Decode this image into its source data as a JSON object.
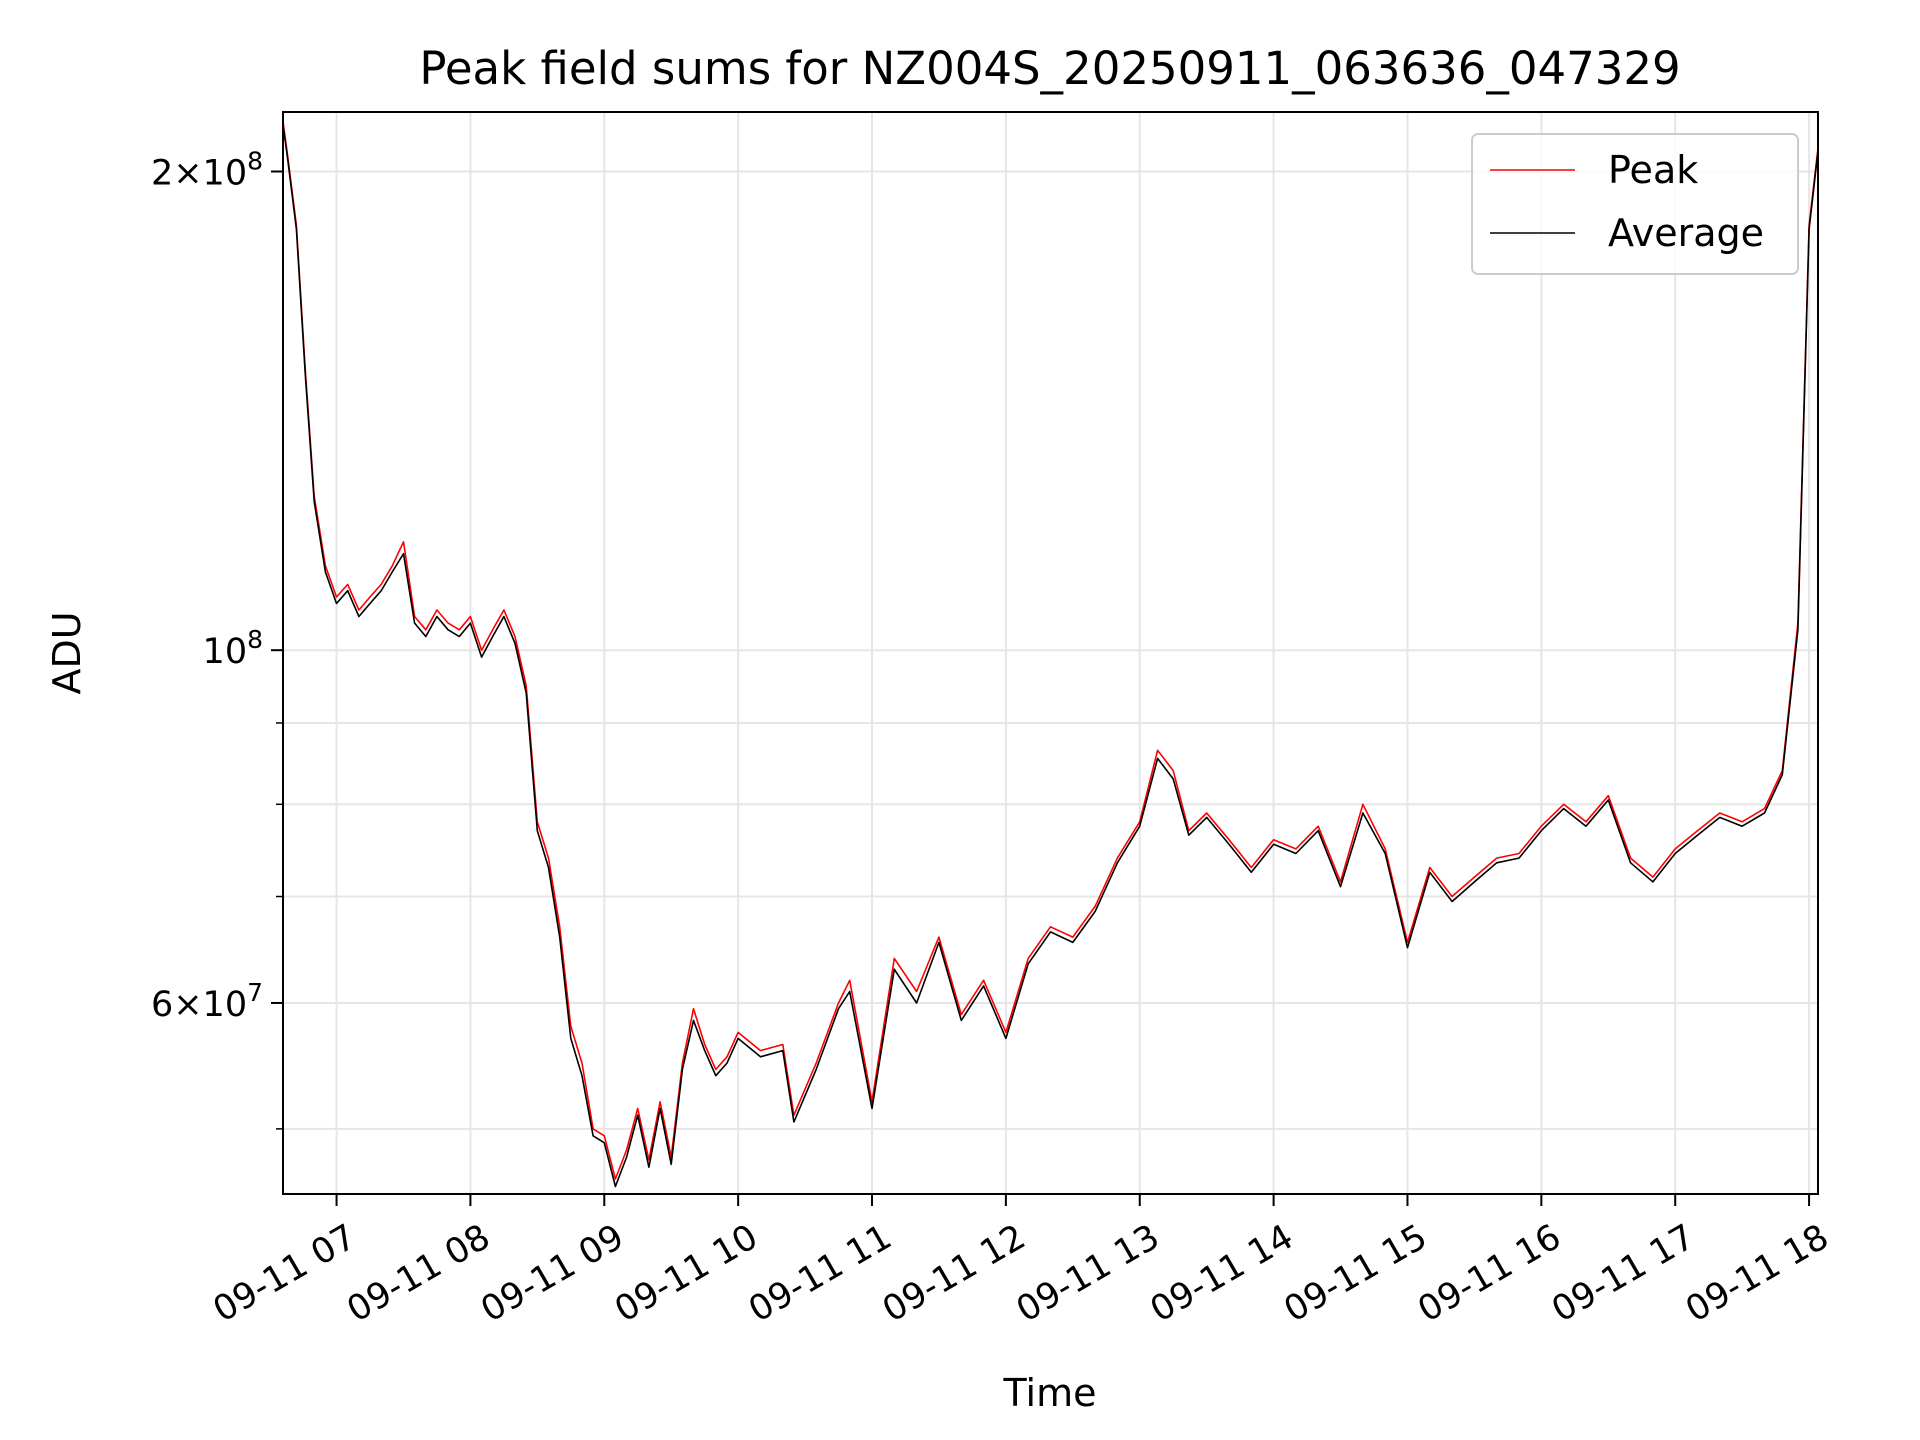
{
  "chart_data": {
    "type": "line",
    "title": "Peak field sums for NZ004S_20250911_063636_047329",
    "xlabel": "Time",
    "ylabel": "ADU",
    "y_scale": "log",
    "xlim": [
      "2025-09-11 06:36",
      "2025-09-11 18:04"
    ],
    "ylim": [
      45500000,
      218000000
    ],
    "grid": true,
    "legend_position": "top-right",
    "x_ticks": [
      {
        "t": "2025-09-11 07:00",
        "label": "09-11 07"
      },
      {
        "t": "2025-09-11 08:00",
        "label": "09-11 08"
      },
      {
        "t": "2025-09-11 09:00",
        "label": "09-11 09"
      },
      {
        "t": "2025-09-11 10:00",
        "label": "09-11 10"
      },
      {
        "t": "2025-09-11 11:00",
        "label": "09-11 11"
      },
      {
        "t": "2025-09-11 12:00",
        "label": "09-11 12"
      },
      {
        "t": "2025-09-11 13:00",
        "label": "09-11 13"
      },
      {
        "t": "2025-09-11 14:00",
        "label": "09-11 14"
      },
      {
        "t": "2025-09-11 15:00",
        "label": "09-11 15"
      },
      {
        "t": "2025-09-11 16:00",
        "label": "09-11 16"
      },
      {
        "t": "2025-09-11 17:00",
        "label": "09-11 17"
      },
      {
        "t": "2025-09-11 18:00",
        "label": "09-11 18"
      }
    ],
    "y_major_ticks": [
      {
        "value": 60000000,
        "mantissa": "6",
        "exponent": "7"
      },
      {
        "value": 100000000,
        "mantissa": "",
        "exponent": "8"
      },
      {
        "value": 200000000,
        "mantissa": "2",
        "exponent": "8"
      }
    ],
    "y_minor_ticks": [
      50000000,
      70000000,
      80000000,
      90000000
    ],
    "series": [
      {
        "name": "Peak",
        "color": "#ff0000",
        "x": [
          "2025-09-11 06:36",
          "2025-09-11 06:38",
          "2025-09-11 06:42",
          "2025-09-11 06:46",
          "2025-09-11 06:50",
          "2025-09-11 06:55",
          "2025-09-11 07:00",
          "2025-09-11 07:05",
          "2025-09-11 07:10",
          "2025-09-11 07:15",
          "2025-09-11 07:20",
          "2025-09-11 07:25",
          "2025-09-11 07:30",
          "2025-09-11 07:35",
          "2025-09-11 07:40",
          "2025-09-11 07:45",
          "2025-09-11 07:50",
          "2025-09-11 07:55",
          "2025-09-11 08:00",
          "2025-09-11 08:05",
          "2025-09-11 08:10",
          "2025-09-11 08:15",
          "2025-09-11 08:20",
          "2025-09-11 08:25",
          "2025-09-11 08:30",
          "2025-09-11 08:35",
          "2025-09-11 08:40",
          "2025-09-11 08:45",
          "2025-09-11 08:50",
          "2025-09-11 08:55",
          "2025-09-11 09:00",
          "2025-09-11 09:05",
          "2025-09-11 09:10",
          "2025-09-11 09:15",
          "2025-09-11 09:20",
          "2025-09-11 09:25",
          "2025-09-11 09:30",
          "2025-09-11 09:35",
          "2025-09-11 09:40",
          "2025-09-11 09:45",
          "2025-09-11 09:50",
          "2025-09-11 09:55",
          "2025-09-11 10:00",
          "2025-09-11 10:10",
          "2025-09-11 10:20",
          "2025-09-11 10:25",
          "2025-09-11 10:35",
          "2025-09-11 10:45",
          "2025-09-11 10:50",
          "2025-09-11 11:00",
          "2025-09-11 11:10",
          "2025-09-11 11:20",
          "2025-09-11 11:30",
          "2025-09-11 11:40",
          "2025-09-11 11:50",
          "2025-09-11 12:00",
          "2025-09-11 12:10",
          "2025-09-11 12:20",
          "2025-09-11 12:30",
          "2025-09-11 12:40",
          "2025-09-11 12:50",
          "2025-09-11 13:00",
          "2025-09-11 13:08",
          "2025-09-11 13:15",
          "2025-09-11 13:22",
          "2025-09-11 13:30",
          "2025-09-11 13:40",
          "2025-09-11 13:50",
          "2025-09-11 14:00",
          "2025-09-11 14:10",
          "2025-09-11 14:20",
          "2025-09-11 14:30",
          "2025-09-11 14:40",
          "2025-09-11 14:50",
          "2025-09-11 15:00",
          "2025-09-11 15:10",
          "2025-09-11 15:20",
          "2025-09-11 15:30",
          "2025-09-11 15:40",
          "2025-09-11 15:50",
          "2025-09-11 16:00",
          "2025-09-11 16:10",
          "2025-09-11 16:20",
          "2025-09-11 16:30",
          "2025-09-11 16:40",
          "2025-09-11 16:50",
          "2025-09-11 17:00",
          "2025-09-11 17:10",
          "2025-09-11 17:20",
          "2025-09-11 17:30",
          "2025-09-11 17:40",
          "2025-09-11 17:48",
          "2025-09-11 17:55",
          "2025-09-11 18:00",
          "2025-09-11 18:04"
        ],
        "values": [
          215000000,
          205000000,
          185000000,
          150000000,
          125000000,
          113000000,
          108000000,
          110000000,
          106000000,
          108000000,
          110000000,
          113000000,
          117000000,
          105000000,
          103000000,
          106000000,
          104000000,
          103000000,
          105000000,
          100000000,
          103000000,
          106000000,
          102000000,
          95000000,
          78000000,
          74000000,
          67000000,
          58000000,
          55000000,
          50000000,
          49500000,
          46500000,
          48500000,
          51500000,
          47800000,
          52000000,
          48000000,
          55000000,
          59500000,
          56500000,
          54500000,
          55500000,
          57500000,
          56000000,
          56500000,
          51000000,
          55000000,
          60000000,
          62000000,
          52000000,
          64000000,
          61000000,
          66000000,
          59000000,
          62000000,
          57500000,
          64000000,
          67000000,
          66000000,
          69000000,
          74000000,
          78000000,
          86500000,
          84000000,
          77000000,
          79000000,
          76000000,
          73000000,
          76000000,
          75000000,
          77500000,
          71500000,
          80000000,
          75000000,
          65500000,
          73000000,
          70000000,
          72000000,
          74000000,
          74500000,
          77500000,
          80000000,
          78000000,
          81000000,
          74000000,
          72000000,
          75000000,
          77000000,
          79000000,
          78000000,
          79500000,
          84000000,
          104000000,
          185000000,
          207000000
        ]
      },
      {
        "name": "Average",
        "color": "#000000",
        "x": [
          "2025-09-11 06:36",
          "2025-09-11 06:38",
          "2025-09-11 06:42",
          "2025-09-11 06:46",
          "2025-09-11 06:50",
          "2025-09-11 06:55",
          "2025-09-11 07:00",
          "2025-09-11 07:05",
          "2025-09-11 07:10",
          "2025-09-11 07:15",
          "2025-09-11 07:20",
          "2025-09-11 07:25",
          "2025-09-11 07:30",
          "2025-09-11 07:35",
          "2025-09-11 07:40",
          "2025-09-11 07:45",
          "2025-09-11 07:50",
          "2025-09-11 07:55",
          "2025-09-11 08:00",
          "2025-09-11 08:05",
          "2025-09-11 08:10",
          "2025-09-11 08:15",
          "2025-09-11 08:20",
          "2025-09-11 08:25",
          "2025-09-11 08:30",
          "2025-09-11 08:35",
          "2025-09-11 08:40",
          "2025-09-11 08:45",
          "2025-09-11 08:50",
          "2025-09-11 08:55",
          "2025-09-11 09:00",
          "2025-09-11 09:05",
          "2025-09-11 09:10",
          "2025-09-11 09:15",
          "2025-09-11 09:20",
          "2025-09-11 09:25",
          "2025-09-11 09:30",
          "2025-09-11 09:35",
          "2025-09-11 09:40",
          "2025-09-11 09:45",
          "2025-09-11 09:50",
          "2025-09-11 09:55",
          "2025-09-11 10:00",
          "2025-09-11 10:10",
          "2025-09-11 10:20",
          "2025-09-11 10:25",
          "2025-09-11 10:35",
          "2025-09-11 10:45",
          "2025-09-11 10:50",
          "2025-09-11 11:00",
          "2025-09-11 11:10",
          "2025-09-11 11:20",
          "2025-09-11 11:30",
          "2025-09-11 11:40",
          "2025-09-11 11:50",
          "2025-09-11 12:00",
          "2025-09-11 12:10",
          "2025-09-11 12:20",
          "2025-09-11 12:30",
          "2025-09-11 12:40",
          "2025-09-11 12:50",
          "2025-09-11 13:00",
          "2025-09-11 13:08",
          "2025-09-11 13:15",
          "2025-09-11 13:22",
          "2025-09-11 13:30",
          "2025-09-11 13:40",
          "2025-09-11 13:50",
          "2025-09-11 14:00",
          "2025-09-11 14:10",
          "2025-09-11 14:20",
          "2025-09-11 14:30",
          "2025-09-11 14:40",
          "2025-09-11 14:50",
          "2025-09-11 15:00",
          "2025-09-11 15:10",
          "2025-09-11 15:20",
          "2025-09-11 15:30",
          "2025-09-11 15:40",
          "2025-09-11 15:50",
          "2025-09-11 16:00",
          "2025-09-11 16:10",
          "2025-09-11 16:20",
          "2025-09-11 16:30",
          "2025-09-11 16:40",
          "2025-09-11 16:50",
          "2025-09-11 17:00",
          "2025-09-11 17:10",
          "2025-09-11 17:20",
          "2025-09-11 17:30",
          "2025-09-11 17:40",
          "2025-09-11 17:48",
          "2025-09-11 17:55",
          "2025-09-11 18:00",
          "2025-09-11 18:04"
        ],
        "values": [
          214000000,
          204000000,
          184000000,
          149000000,
          124000000,
          112000000,
          107000000,
          109000000,
          105000000,
          107000000,
          109000000,
          112000000,
          115000000,
          104000000,
          102000000,
          105000000,
          103000000,
          102000000,
          104000000,
          99000000,
          102000000,
          105000000,
          101000000,
          94000000,
          77000000,
          73000000,
          66000000,
          57000000,
          54000000,
          49500000,
          49000000,
          46000000,
          48000000,
          51000000,
          47300000,
          51500000,
          47500000,
          54500000,
          58500000,
          56000000,
          54000000,
          55000000,
          57000000,
          55500000,
          56000000,
          50500000,
          54500000,
          59500000,
          61000000,
          51500000,
          63000000,
          60000000,
          65500000,
          58500000,
          61500000,
          57000000,
          63500000,
          66500000,
          65500000,
          68500000,
          73500000,
          77500000,
          85500000,
          83000000,
          76500000,
          78500000,
          75500000,
          72500000,
          75500000,
          74500000,
          77000000,
          71000000,
          79000000,
          74500000,
          65000000,
          72500000,
          69500000,
          71500000,
          73500000,
          74000000,
          77000000,
          79500000,
          77500000,
          80500000,
          73500000,
          71500000,
          74500000,
          76500000,
          78500000,
          77500000,
          79000000,
          83500000,
          103000000,
          184000000,
          206000000
        ]
      }
    ]
  }
}
